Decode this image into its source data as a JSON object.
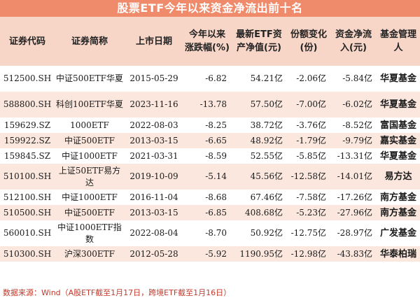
{
  "title": "股票ETF今年以来资金净流出前十名",
  "headers": [
    "证券代码",
    "证券简称",
    "上市日期",
    "今年以来涨跌幅(%)",
    "最新ETF资产净值(元)",
    "份额变化(份)",
    "资金净流入(元)",
    "基金管理人"
  ],
  "rows": [
    {
      "code": "512500.SH",
      "name": "中证500ETF华夏",
      "date": "2015-05-29",
      "change": "-6.82",
      "nav": "54.21亿",
      "shares": "-2.06亿",
      "inflow": "-5.84亿",
      "manager": "华夏基金"
    },
    {
      "code": "588800.SH",
      "name": "科创100ETF华夏",
      "date": "2023-11-16",
      "change": "-13.78",
      "nav": "57.50亿",
      "shares": "-7.00亿",
      "inflow": "-6.02亿",
      "manager": "华夏基金"
    },
    {
      "code": "159629.SZ",
      "name": "1000ETF",
      "date": "2022-08-03",
      "change": "-8.25",
      "nav": "38.72亿",
      "shares": "-3.76亿",
      "inflow": "-8.52亿",
      "manager": "富国基金"
    },
    {
      "code": "159922.SZ",
      "name": "中证500ETF",
      "date": "2013-03-15",
      "change": "-6.65",
      "nav": "48.92亿",
      "shares": "-1.79亿",
      "inflow": "-9.79亿",
      "manager": "嘉实基金"
    },
    {
      "code": "159845.SZ",
      "name": "中证1000ETF",
      "date": "2021-03-31",
      "change": "-8.59",
      "nav": "52.55亿",
      "shares": "-5.85亿",
      "inflow": "-13.31亿",
      "manager": "华夏基金"
    },
    {
      "code": "510100.SH",
      "name": "上证50ETF易方达",
      "date": "2019-10-09",
      "change": "-5.14",
      "nav": "45.56亿",
      "shares": "-12.58亿",
      "inflow": "-14.01亿",
      "manager": "易方达"
    },
    {
      "code": "512100.SH",
      "name": "中证1000ETF",
      "date": "2016-11-04",
      "change": "-8.68",
      "nav": "67.46亿",
      "shares": "-7.58亿",
      "inflow": "-17.26亿",
      "manager": "南方基金"
    },
    {
      "code": "510500.SH",
      "name": "中证500ETF",
      "date": "2013-03-15",
      "change": "-6.85",
      "nav": "408.68亿",
      "shares": "-5.23亿",
      "inflow": "-27.96亿",
      "manager": "南方基金"
    },
    {
      "code": "560010.SH",
      "name": "中证1000ETF指数",
      "date": "2022-08-04",
      "change": "-8.70",
      "nav": "50.92亿",
      "shares": "-12.75亿",
      "inflow": "-28.97亿",
      "manager": "广发基金"
    },
    {
      "code": "510300.SH",
      "name": "沪深300ETF",
      "date": "2012-05-28",
      "change": "-5.92",
      "nav": "1190.95亿",
      "shares": "-12.98亿",
      "inflow": "-43.83亿",
      "manager": "华泰柏瑞"
    }
  ],
  "source": "数据来源：Wind（A股ETF截至1月17日，跨境ETF截至1月16日）"
}
